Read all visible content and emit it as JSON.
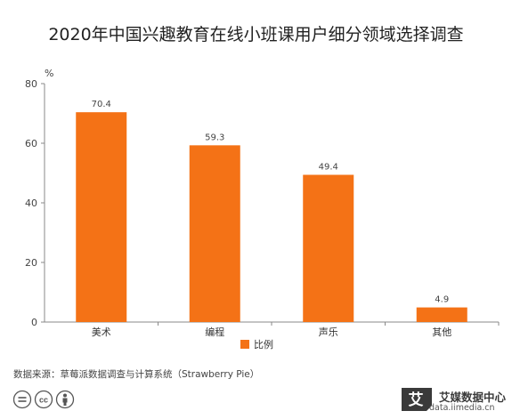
{
  "chart_data": {
    "type": "bar",
    "title": "2020年中国兴趣教育在线小班课用户细分领域选择调查",
    "ylabel": "%",
    "categories": [
      "美术",
      "编程",
      "声乐",
      "其他"
    ],
    "series": [
      {
        "name": "比例",
        "values": [
          70.4,
          59.3,
          49.4,
          4.9
        ],
        "color": "#f47216"
      }
    ],
    "ylim": [
      0,
      80
    ],
    "yticks": [
      0,
      20,
      40,
      60,
      80
    ],
    "grid": false,
    "legend_position": "bottom-center"
  },
  "footer": {
    "source": "数据来源：草莓派数据调查与计算系统（Strawberry Pie）",
    "cc_icons": [
      "equals-icon",
      "cc-icon",
      "person-icon"
    ]
  },
  "brand": {
    "name": "艾媒数据中心",
    "url": "data.iimedia.cn",
    "glyph": "艾"
  }
}
